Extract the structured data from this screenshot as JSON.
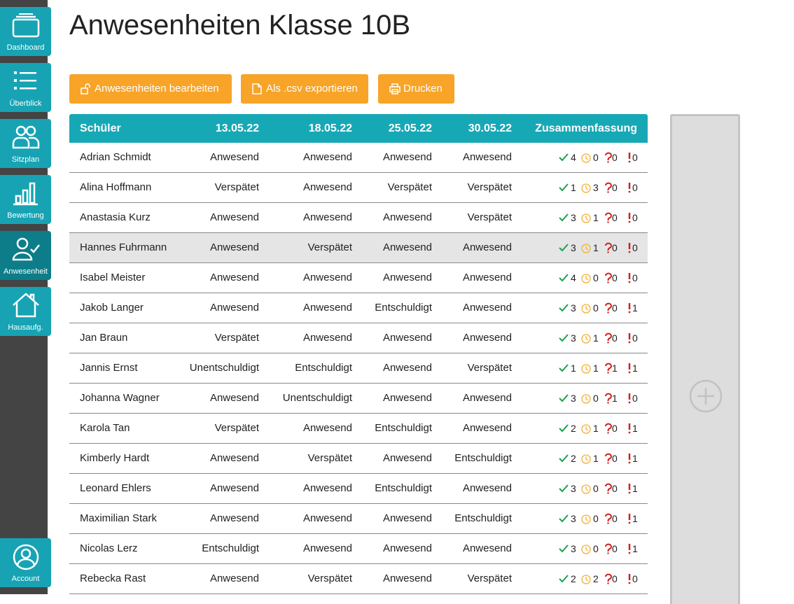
{
  "sidebar": {
    "items": [
      "Dashboard",
      "Überblick",
      "Sitzplan",
      "Bewertung",
      "Anwesenheit",
      "Hausaufg."
    ],
    "active": 4,
    "account": "Account"
  },
  "header": {
    "title": "Anwesenheiten Klasse 10B"
  },
  "buttons": [
    "Anwesenheiten bearbeiten",
    "Als .csv exportieren",
    "Drucken"
  ],
  "table": {
    "columns": [
      "Schüler",
      "13.05.22",
      "18.05.22",
      "25.05.22",
      "30.05.22",
      "Zusammenfassung"
    ],
    "highlighted_row": 3,
    "rows": [
      {
        "name": "Adrian Schmidt",
        "days": [
          "Anwesend",
          "Anwesend",
          "Anwesend",
          "Anwesend"
        ],
        "summary": [
          4,
          0,
          0,
          0
        ]
      },
      {
        "name": "Alina Hoffmann",
        "days": [
          "Verspätet",
          "Anwesend",
          "Verspätet",
          "Verspätet"
        ],
        "summary": [
          1,
          3,
          0,
          0
        ]
      },
      {
        "name": "Anastasia Kurz",
        "days": [
          "Anwesend",
          "Anwesend",
          "Anwesend",
          "Verspätet"
        ],
        "summary": [
          3,
          1,
          0,
          0
        ]
      },
      {
        "name": "Hannes Fuhrmann",
        "days": [
          "Anwesend",
          "Verspätet",
          "Anwesend",
          "Anwesend"
        ],
        "summary": [
          3,
          1,
          0,
          0
        ]
      },
      {
        "name": "Isabel Meister",
        "days": [
          "Anwesend",
          "Anwesend",
          "Anwesend",
          "Anwesend"
        ],
        "summary": [
          4,
          0,
          0,
          0
        ]
      },
      {
        "name": "Jakob Langer",
        "days": [
          "Anwesend",
          "Anwesend",
          "Entschuldigt",
          "Anwesend"
        ],
        "summary": [
          3,
          0,
          0,
          1
        ]
      },
      {
        "name": "Jan Braun",
        "days": [
          "Verspätet",
          "Anwesend",
          "Anwesend",
          "Anwesend"
        ],
        "summary": [
          3,
          1,
          0,
          0
        ]
      },
      {
        "name": "Jannis Ernst",
        "days": [
          "Unentschuldigt",
          "Entschuldigt",
          "Anwesend",
          "Verspätet"
        ],
        "summary": [
          1,
          1,
          1,
          1
        ]
      },
      {
        "name": "Johanna Wagner",
        "days": [
          "Anwesend",
          "Unentschuldigt",
          "Anwesend",
          "Anwesend"
        ],
        "summary": [
          3,
          0,
          1,
          0
        ]
      },
      {
        "name": "Karola Tan",
        "days": [
          "Verspätet",
          "Anwesend",
          "Entschuldigt",
          "Anwesend"
        ],
        "summary": [
          2,
          1,
          0,
          1
        ]
      },
      {
        "name": "Kimberly Hardt",
        "days": [
          "Anwesend",
          "Verspätet",
          "Anwesend",
          "Entschuldigt"
        ],
        "summary": [
          2,
          1,
          0,
          1
        ]
      },
      {
        "name": "Leonard Ehlers",
        "days": [
          "Anwesend",
          "Anwesend",
          "Entschuldigt",
          "Anwesend"
        ],
        "summary": [
          3,
          0,
          0,
          1
        ]
      },
      {
        "name": "Maximilian Stark",
        "days": [
          "Anwesend",
          "Anwesend",
          "Anwesend",
          "Entschuldigt"
        ],
        "summary": [
          3,
          0,
          0,
          1
        ]
      },
      {
        "name": "Nicolas Lerz",
        "days": [
          "Entschuldigt",
          "Anwesend",
          "Anwesend",
          "Anwesend"
        ],
        "summary": [
          3,
          0,
          0,
          1
        ]
      },
      {
        "name": "Rebecka Rast",
        "days": [
          "Anwesend",
          "Verspätet",
          "Anwesend",
          "Verspätet"
        ],
        "summary": [
          2,
          2,
          0,
          0
        ]
      }
    ]
  }
}
